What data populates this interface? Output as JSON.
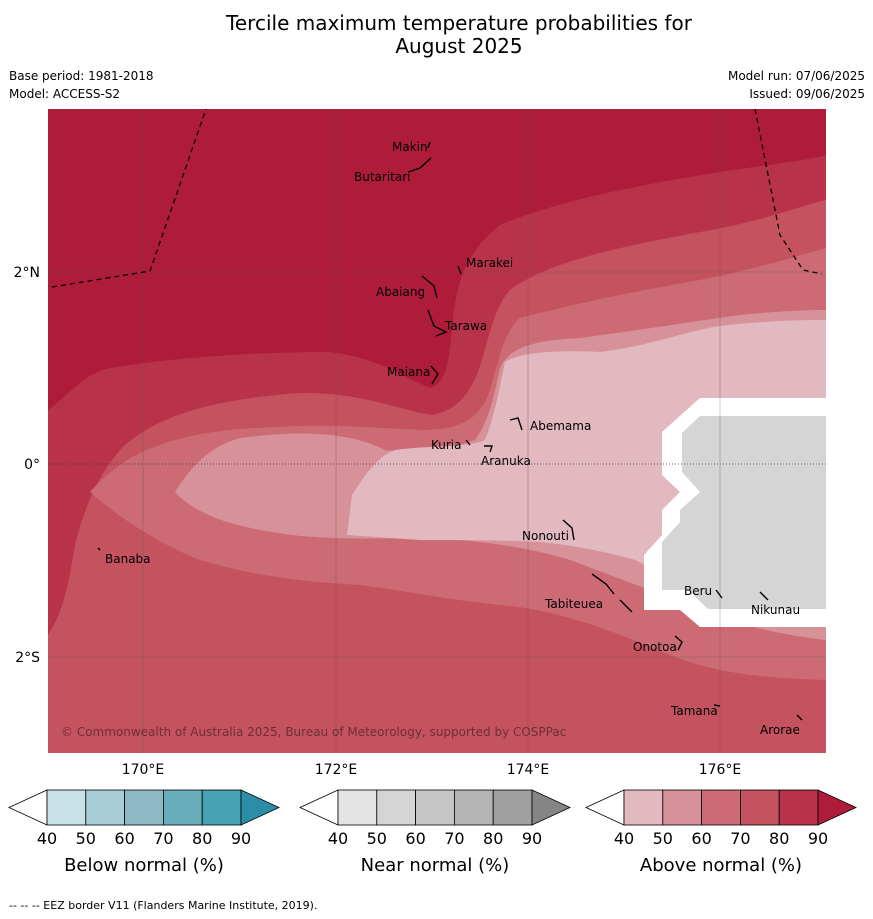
{
  "title_line1": "Tercile maximum temperature probabilities for",
  "title_line2": "August 2025",
  "meta": {
    "base_period": "Base period: 1981-2018",
    "model": "Model: ACCESS-S2",
    "model_run": "Model run: 07/06/2025",
    "issued": "Issued: 09/06/2025"
  },
  "lat_labels": [
    "2°N",
    "0°",
    "2°S"
  ],
  "lon_labels": [
    "170°E",
    "172°E",
    "174°E",
    "176°E"
  ],
  "places": [
    "Makin",
    "Butaritari",
    "Marakei",
    "Abaiang",
    "Tarawa",
    "Maiana",
    "Abemama",
    "Kuria",
    "Aranuka",
    "Nonouti",
    "Banaba",
    "Tabiteuea",
    "Beru",
    "Nikunau",
    "Onotoa",
    "Tamana",
    "Arorae"
  ],
  "copyright": "© Commonwealth of Australia 2025, Bureau of Meteorology, supported by COSPPac",
  "colorbars": [
    {
      "label": "Below normal (%)",
      "ticks": [
        "40",
        "50",
        "60",
        "70",
        "80",
        "90"
      ],
      "colors": [
        "#ffffff",
        "#c9e1e9",
        "#a8cdd6",
        "#8cb9c5",
        "#6aaebd",
        "#47a2b3",
        "#2b8ea6"
      ]
    },
    {
      "label": "Near normal (%)",
      "ticks": [
        "40",
        "50",
        "60",
        "70",
        "80",
        "90"
      ],
      "colors": [
        "#ffffff",
        "#e4e4e4",
        "#d5d5d5",
        "#c6c6c6",
        "#b4b4b4",
        "#a0a0a0",
        "#858585"
      ]
    },
    {
      "label": "Above normal (%)",
      "ticks": [
        "40",
        "50",
        "60",
        "70",
        "80",
        "90"
      ],
      "colors": [
        "#ffffff",
        "#e2b9c0",
        "#d79198",
        "#cc6b74",
        "#c4535f",
        "#b8334a",
        "#ae1c3a"
      ]
    }
  ],
  "footnote": "--  --  -- EEZ border V11 (Flanders Marine Institute, 2019)."
}
